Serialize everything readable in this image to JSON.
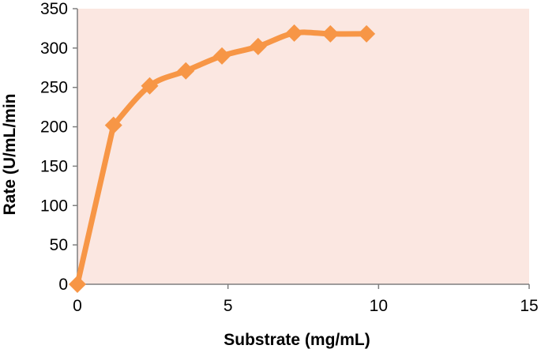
{
  "chart_data": {
    "type": "line",
    "title": "",
    "xlabel": "Substrate (mg/mL)",
    "ylabel": "Rate (U/mL/min",
    "xlim": [
      0,
      15
    ],
    "ylim": [
      0,
      350
    ],
    "xticks": [
      0,
      5,
      10,
      15
    ],
    "yticks": [
      0,
      50,
      100,
      150,
      200,
      250,
      300,
      350
    ],
    "grid": false,
    "legend": "none",
    "series": [
      {
        "marker": "diamond",
        "color": "#f79646",
        "x": [
          0,
          1.2,
          2.4,
          3.6,
          4.8,
          6.0,
          7.2,
          8.4,
          9.6
        ],
        "y": [
          0,
          202,
          252,
          271,
          290,
          302,
          319,
          318,
          318
        ]
      }
    ],
    "plot_background": "#fbe7e1",
    "axis_color": "#7f7f7f"
  }
}
